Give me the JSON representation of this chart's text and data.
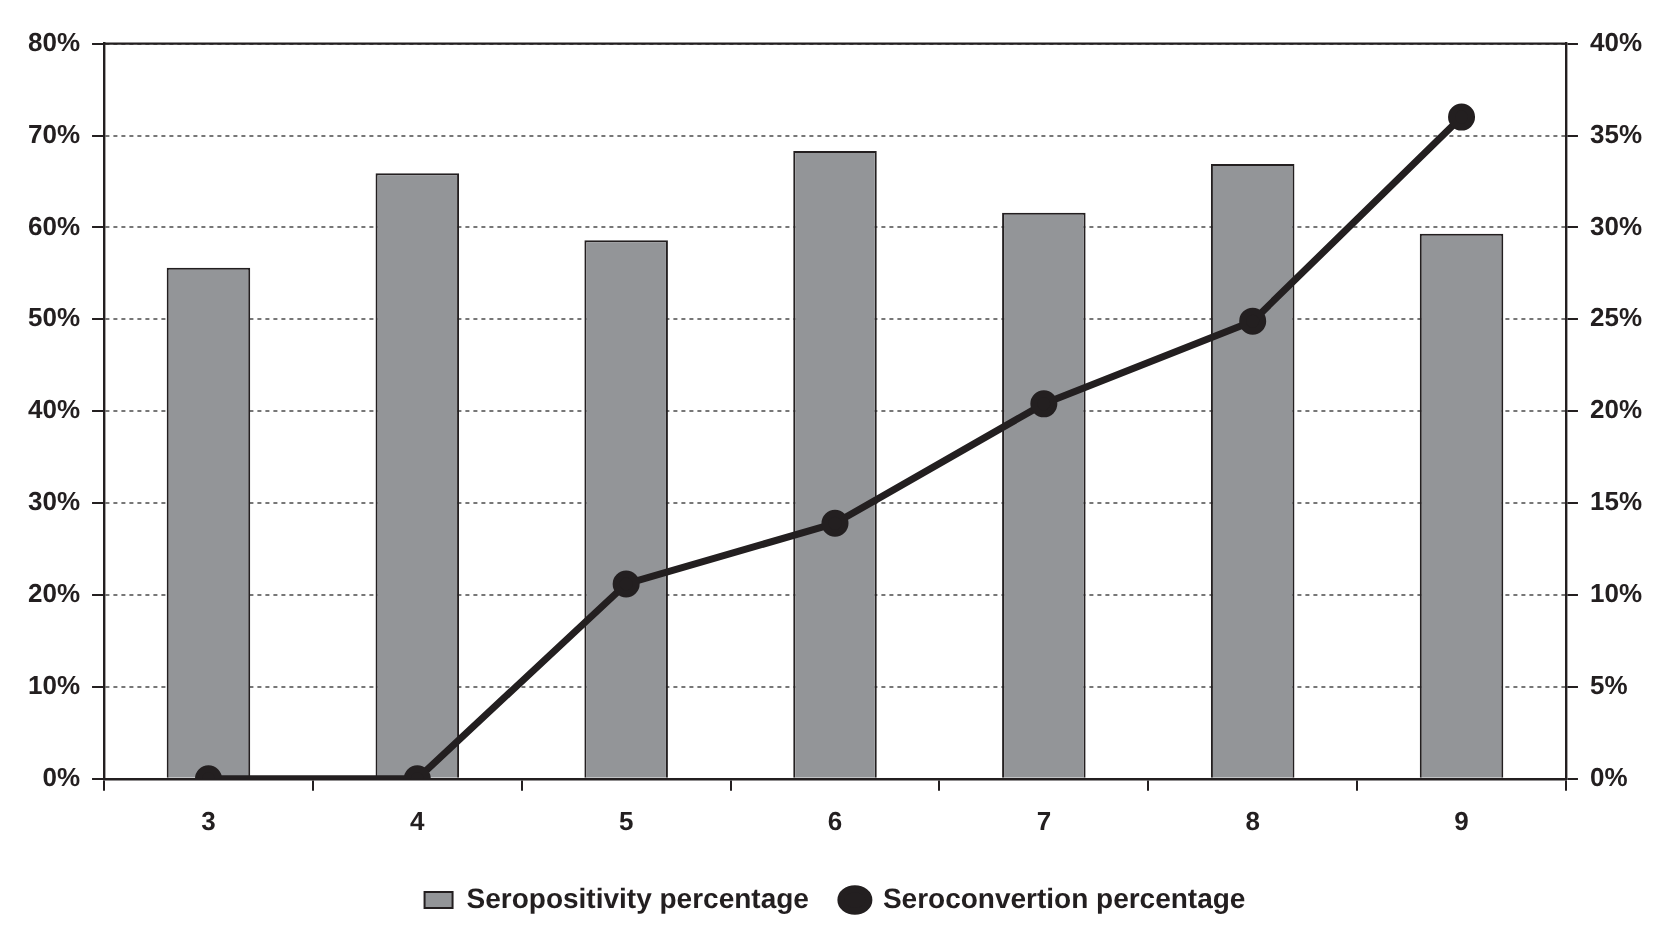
{
  "chart_data": {
    "type": "bar",
    "categories": [
      "3",
      "4",
      "5",
      "6",
      "7",
      "8",
      "9"
    ],
    "series": [
      {
        "name": "Seropositivity percentage",
        "color": "#939598",
        "values": [
          55.6,
          65.9,
          58.6,
          68.3,
          61.6,
          66.9,
          59.3
        ]
      },
      {
        "name": "Seroconvertion percentage",
        "type": "line",
        "axis": "y2",
        "color": "#231f20",
        "values": [
          0,
          0,
          10.6,
          13.9,
          20.4,
          24.9,
          36.0
        ]
      }
    ],
    "ylim": [
      0,
      80
    ],
    "yticks": [
      {
        "value": 0,
        "label": "0%"
      },
      {
        "value": 10,
        "label": "10%"
      },
      {
        "value": 20,
        "label": "20%"
      },
      {
        "value": 30,
        "label": "30%"
      },
      {
        "value": 40,
        "label": "40%"
      },
      {
        "value": 50,
        "label": "50%"
      },
      {
        "value": 60,
        "label": "60%"
      },
      {
        "value": 70,
        "label": "70%"
      },
      {
        "value": 80,
        "label": "80%"
      }
    ],
    "y2lim": [
      0,
      40
    ],
    "y2ticks": [
      {
        "value": 0,
        "label": "0%"
      },
      {
        "value": 5,
        "label": "5%"
      },
      {
        "value": 10,
        "label": "10%"
      },
      {
        "value": 15,
        "label": "15%"
      },
      {
        "value": 20,
        "label": "20%"
      },
      {
        "value": 25,
        "label": "25%"
      },
      {
        "value": 30,
        "label": "30%"
      },
      {
        "value": 35,
        "label": "35%"
      },
      {
        "value": 40,
        "label": "40%"
      }
    ],
    "grid": "y",
    "legend": "bottom",
    "marker": "circle",
    "line_style": "solid"
  }
}
